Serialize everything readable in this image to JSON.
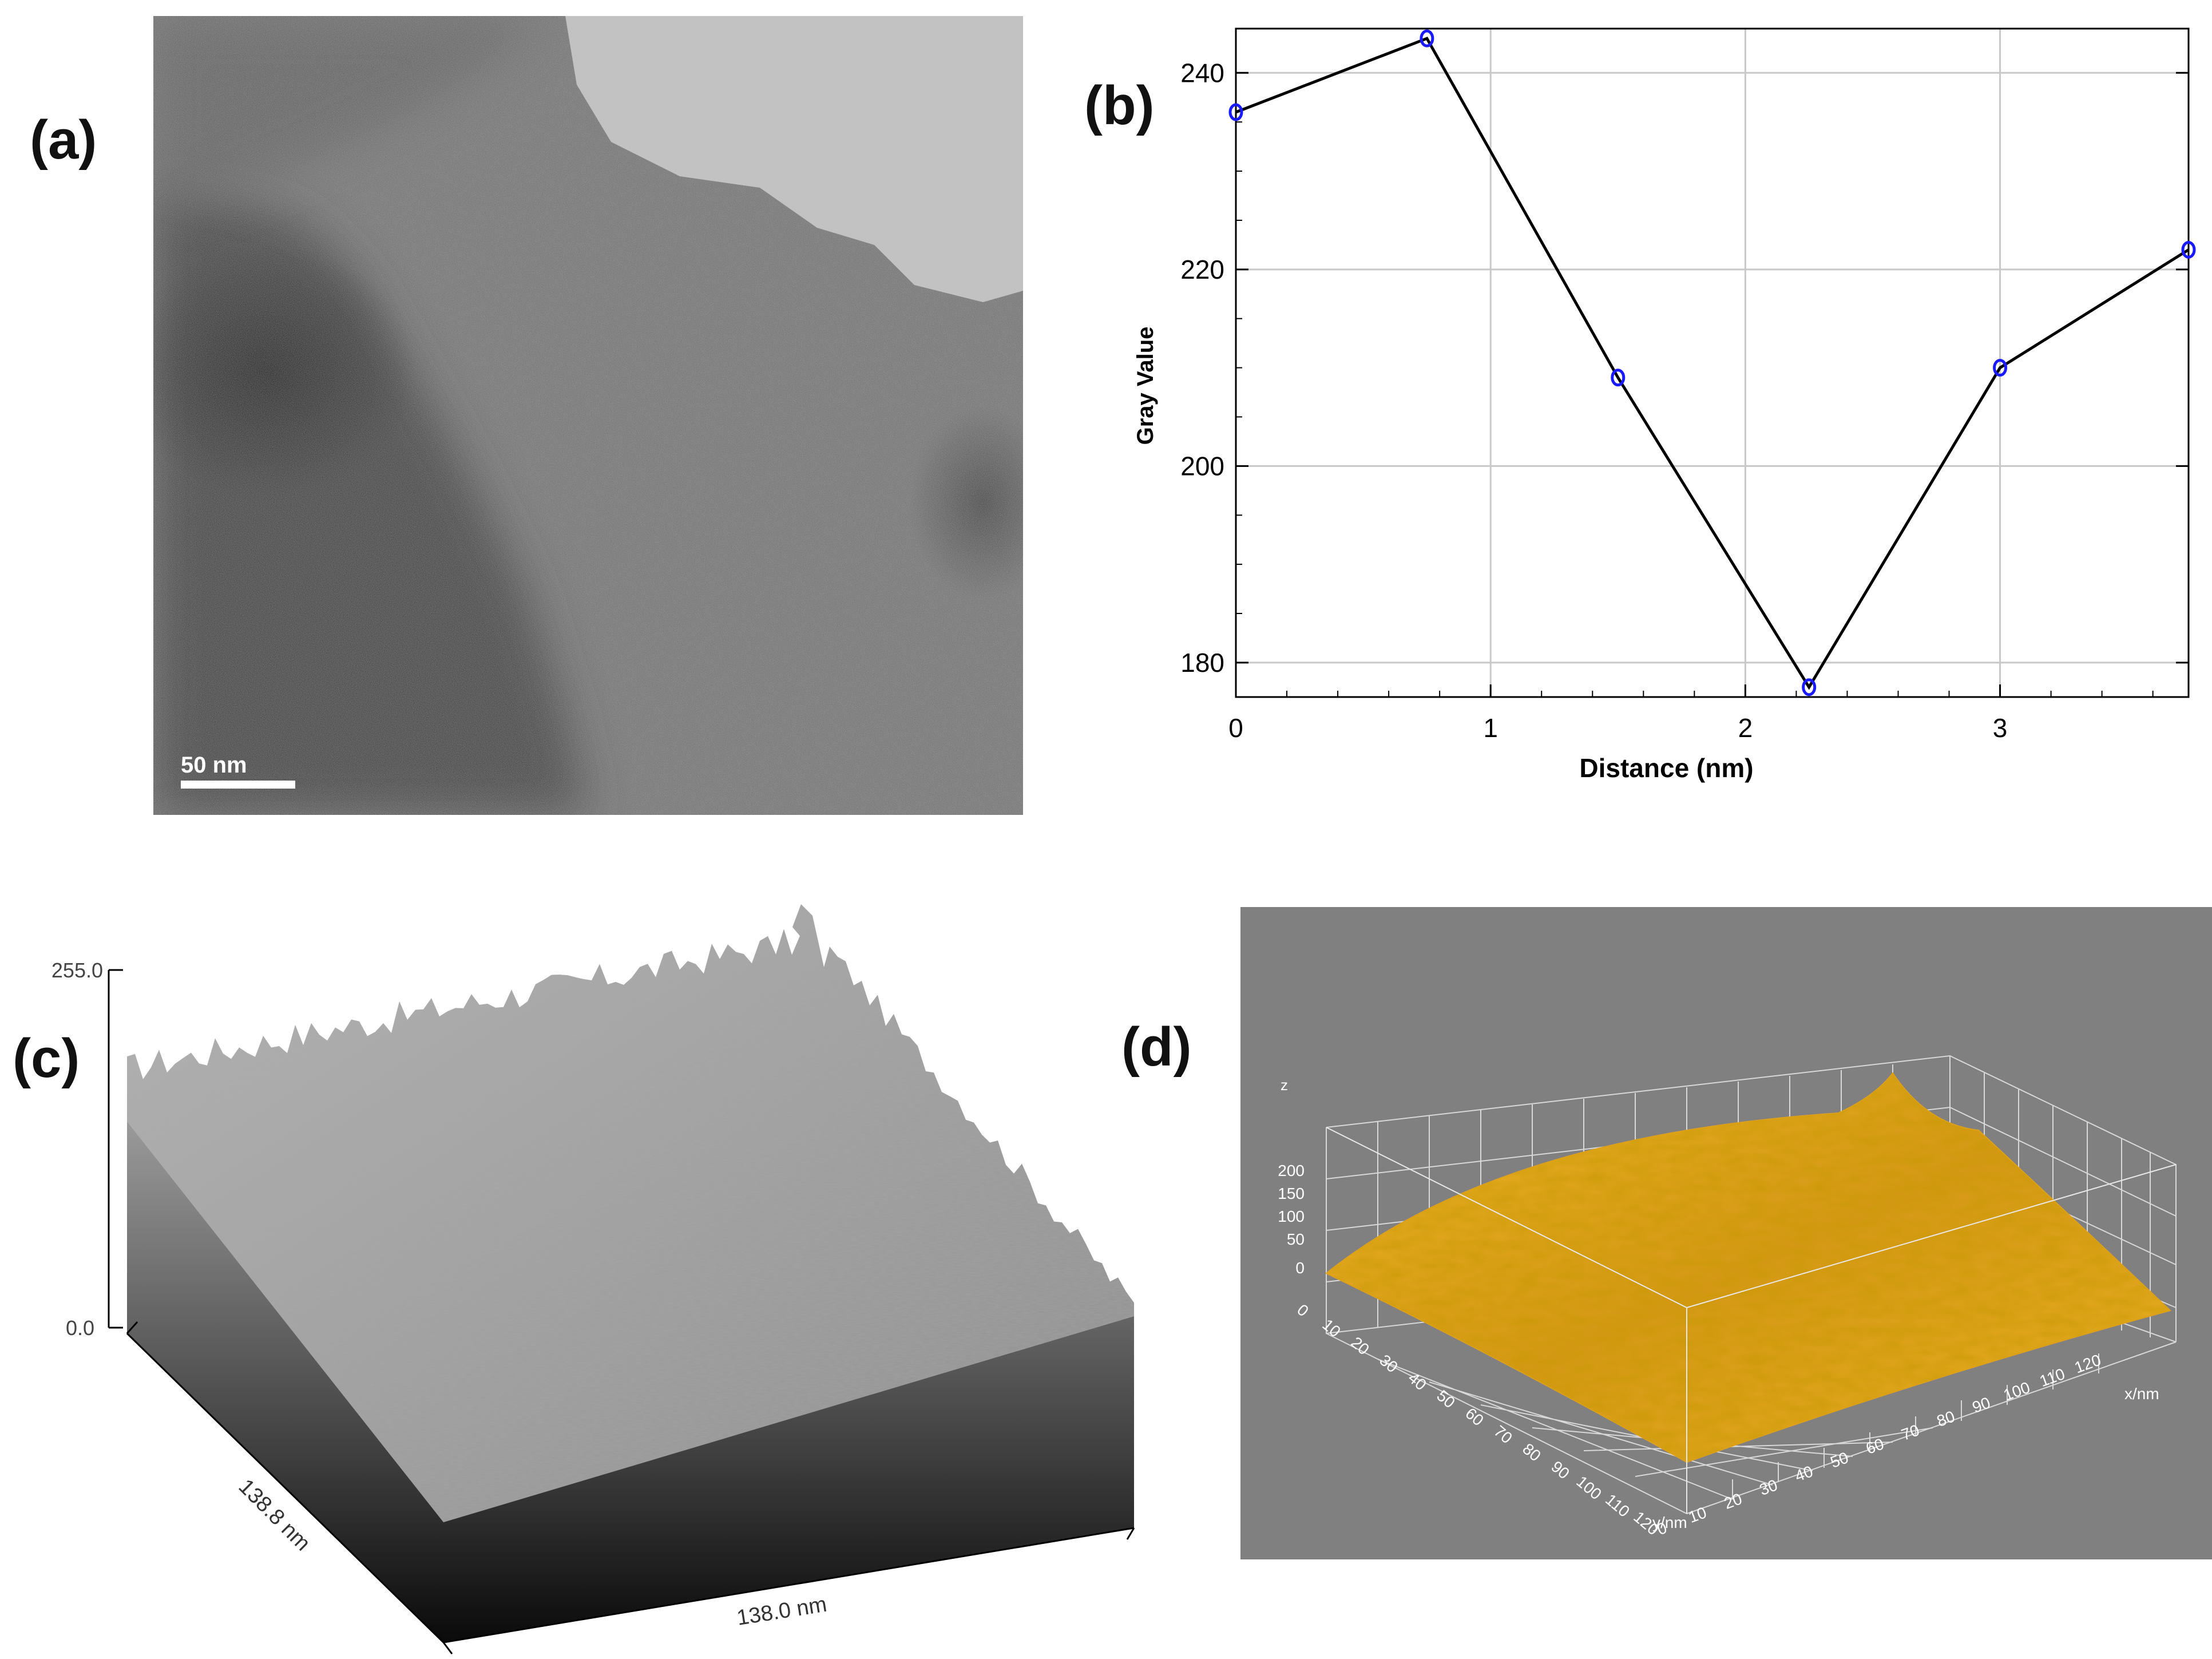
{
  "panels": {
    "a": {
      "label": "(a)",
      "scale_bar": "50 nm"
    },
    "b": {
      "label": "(b)"
    },
    "c": {
      "label": "(c)",
      "z_max_label": "255.0",
      "z_min_label": "0.0",
      "y_side_label": "138.8 nm",
      "x_side_label": "138.0 nm"
    },
    "d": {
      "label": "(d)",
      "z_axis_label": "z",
      "z_ticks": [
        "200",
        "150",
        "100",
        "50",
        "0"
      ],
      "y_ticks": [
        "0",
        "10",
        "20",
        "30",
        "40",
        "50",
        "60",
        "70",
        "80",
        "90",
        "100",
        "110",
        "120"
      ],
      "x_ticks": [
        "0",
        "10",
        "20",
        "30",
        "40",
        "50",
        "60",
        "70",
        "80",
        "90",
        "100",
        "110",
        "120"
      ],
      "x_axis_label": "x/nm",
      "y_axis_label": "y/nm",
      "surface_color": "#e3a21c",
      "background_color": "#808080"
    }
  },
  "chart_data": {
    "type": "line",
    "title": "",
    "xlabel": "Distance (nm)",
    "ylabel": "Gray Value",
    "xlim": [
      0,
      3.74
    ],
    "ylim": [
      176.5,
      244.5
    ],
    "x_ticks": [
      0,
      1,
      2,
      3
    ],
    "y_ticks": [
      180,
      200,
      220,
      240
    ],
    "grid": true,
    "series": [
      {
        "x": [
          0,
          0.75,
          1.5,
          2.25,
          3.0,
          3.74
        ],
        "y": [
          236,
          243.5,
          209,
          177.5,
          210,
          222
        ]
      }
    ],
    "line_color": "#000000",
    "marker_color": "#1a1aff"
  }
}
